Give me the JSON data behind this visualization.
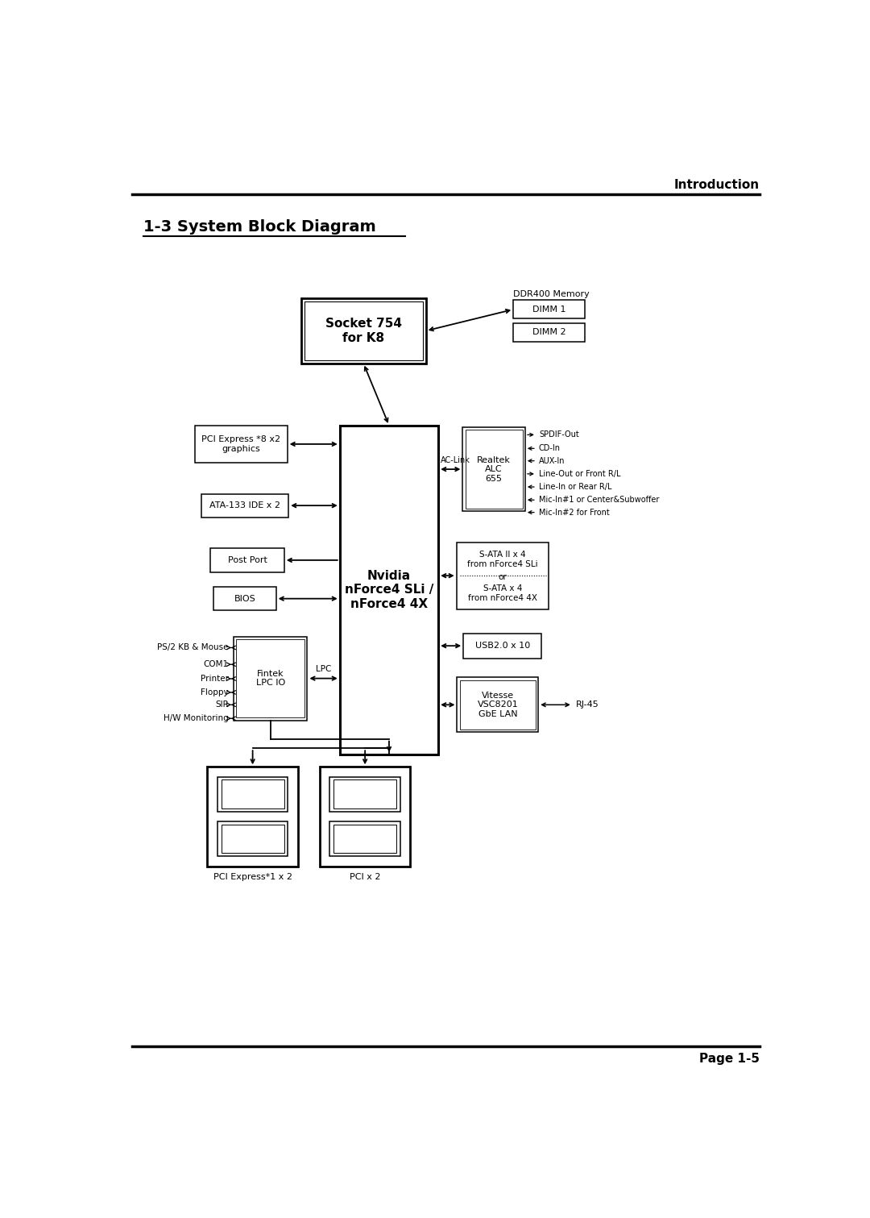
{
  "page_title": "Introduction",
  "section_title": "1-3 System Block Diagram",
  "page_number": "Page 1-5",
  "bg_color": "#ffffff",
  "black": "#000000",
  "white": "#ffffff"
}
